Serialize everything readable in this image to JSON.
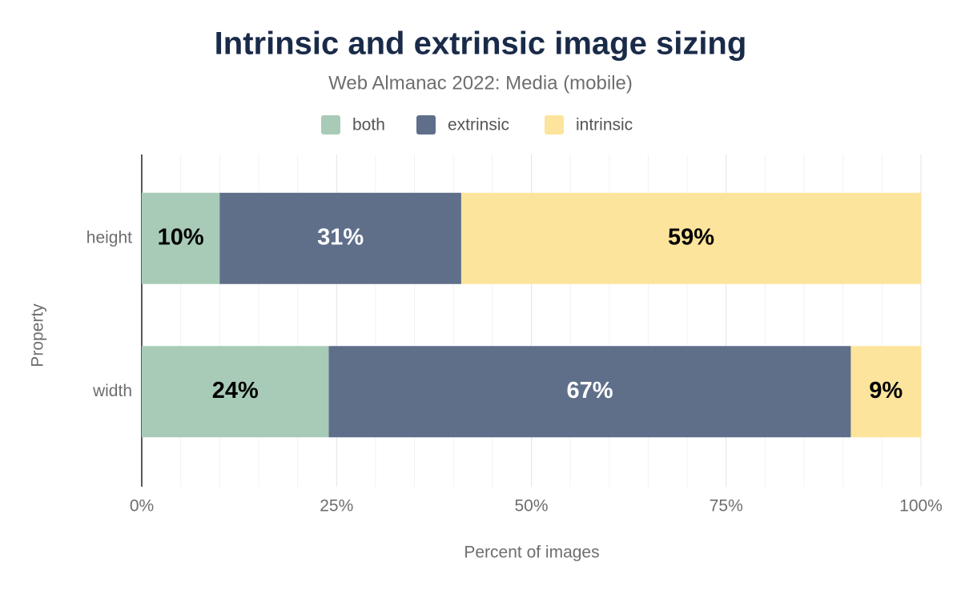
{
  "chart_data": {
    "type": "stacked_bar_horizontal",
    "title": "Intrinsic and extrinsic image sizing",
    "subtitle": "Web Almanac 2022: Media (mobile)",
    "x_label": "Percent of images",
    "y_label": "Property",
    "categories": [
      "height",
      "width"
    ],
    "series": [
      {
        "name": "both",
        "color": "#a8cbb7",
        "values": [
          10,
          24
        ],
        "value_labels": [
          "10%",
          "24%"
        ]
      },
      {
        "name": "extrinsic",
        "color": "#5f6f8a",
        "values": [
          31,
          67
        ],
        "value_labels": [
          "31%",
          "67%"
        ]
      },
      {
        "name": "intrinsic",
        "color": "#fde49c",
        "values": [
          59,
          9
        ],
        "value_labels": [
          "59%",
          "9%"
        ]
      }
    ],
    "xlim": [
      0,
      100
    ],
    "xticks": [
      {
        "value": 0,
        "label": "0%"
      },
      {
        "value": 25,
        "label": "25%"
      },
      {
        "value": 50,
        "label": "50%"
      },
      {
        "value": 75,
        "label": "75%"
      },
      {
        "value": 100,
        "label": "100%"
      }
    ],
    "minor_xticks": [
      5,
      10,
      15,
      20,
      30,
      35,
      40,
      45,
      55,
      60,
      65,
      70,
      80,
      85,
      90,
      95
    ],
    "grid": true,
    "legend": "top"
  }
}
